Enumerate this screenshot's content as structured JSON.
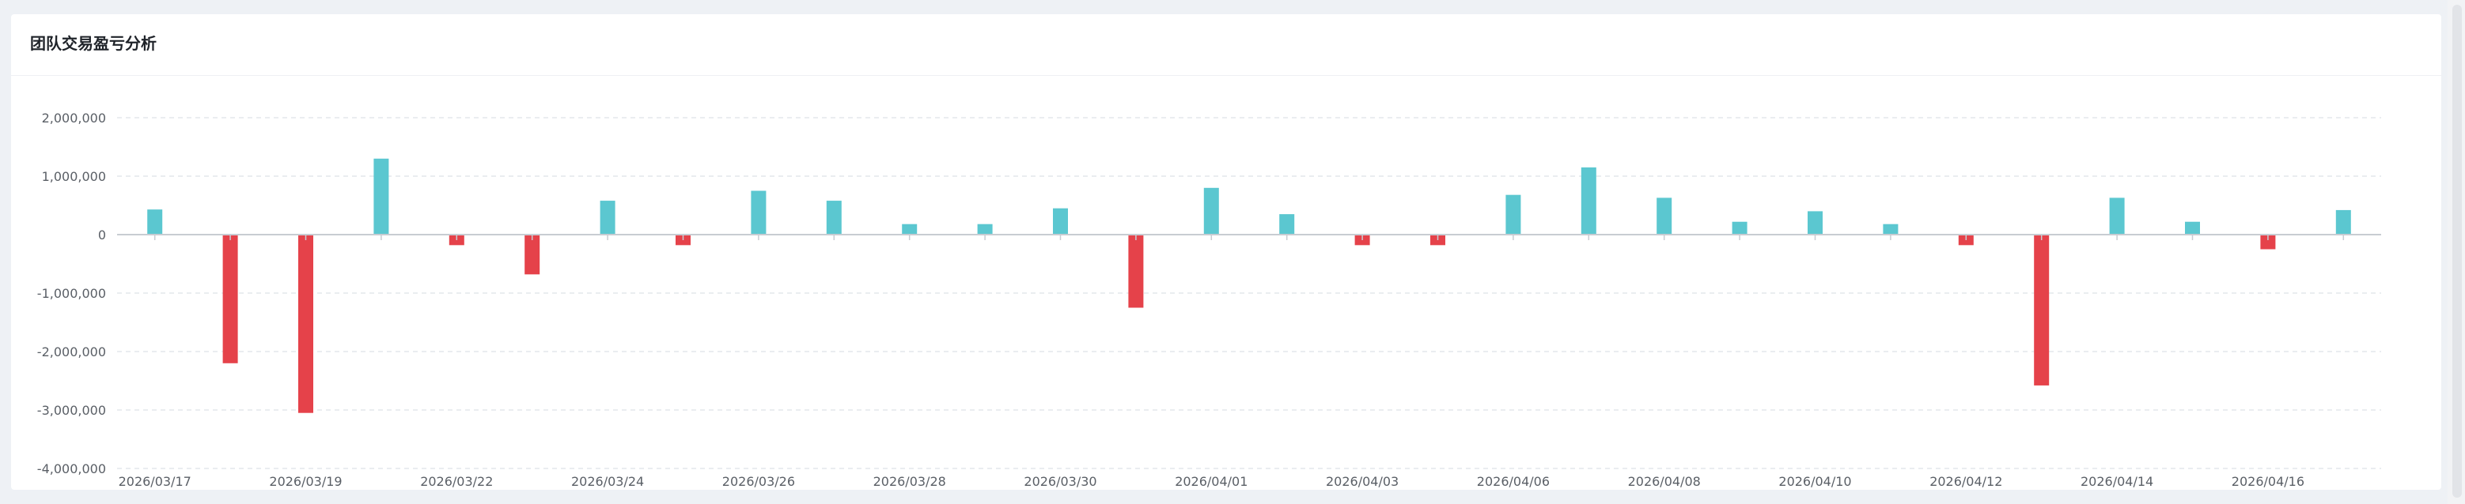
{
  "card": {
    "title": "团队交易盈亏分析"
  },
  "chart_data": {
    "type": "bar",
    "title": "团队交易盈亏分析",
    "xlabel": "",
    "ylabel": "",
    "ylim": [
      -4000000,
      2000000
    ],
    "yticks": [
      2000000,
      1000000,
      0,
      -1000000,
      -2000000,
      -3000000,
      -4000000
    ],
    "ytick_labels": [
      "2,000,000",
      "1,000,000",
      "0",
      "-1,000,000",
      "-2,000,000",
      "-3,000,000",
      "-4,000,000"
    ],
    "categories": [
      "2026/03/17",
      "2026/03/18",
      "2026/03/19",
      "2026/03/20",
      "2026/03/22",
      "2026/03/23",
      "2026/03/24",
      "2026/03/25",
      "2026/03/26",
      "2026/03/27",
      "2026/03/28",
      "2026/03/29",
      "2026/03/30",
      "2026/03/31",
      "2026/04/01",
      "2026/04/02",
      "2026/04/03",
      "2026/04/05",
      "2026/04/06",
      "2026/04/07",
      "2026/04/08",
      "2026/04/09",
      "2026/04/10",
      "2026/04/11",
      "2026/04/12",
      "2026/04/13",
      "2026/04/14",
      "2026/04/15",
      "2026/04/16",
      "2026/04/17"
    ],
    "xtick_labels": [
      "2026/03/17",
      "",
      "2026/03/19",
      "",
      "2026/03/22",
      "",
      "2026/03/24",
      "",
      "2026/03/26",
      "",
      "2026/03/28",
      "",
      "2026/03/30",
      "",
      "2026/04/01",
      "",
      "2026/04/03",
      "",
      "2026/04/06",
      "",
      "2026/04/08",
      "",
      "2026/04/10",
      "",
      "2026/04/12",
      "",
      "2026/04/14",
      "",
      "2026/04/16",
      ""
    ],
    "values": [
      430000,
      -2200000,
      -3050000,
      1300000,
      -180000,
      -680000,
      580000,
      -180000,
      750000,
      580000,
      180000,
      180000,
      450000,
      -1250000,
      800000,
      350000,
      -180000,
      -180000,
      680000,
      1150000,
      630000,
      220000,
      400000,
      180000,
      -180000,
      -2580000,
      630000,
      220000,
      -250000,
      420000
    ],
    "grid": true,
    "legend": "none",
    "colors": {
      "positive": "#5bc7d0",
      "negative": "#e5424a",
      "grid": "#e4e7ec",
      "axis": "#c8ccd2",
      "tick_text": "#5a5f66"
    }
  }
}
